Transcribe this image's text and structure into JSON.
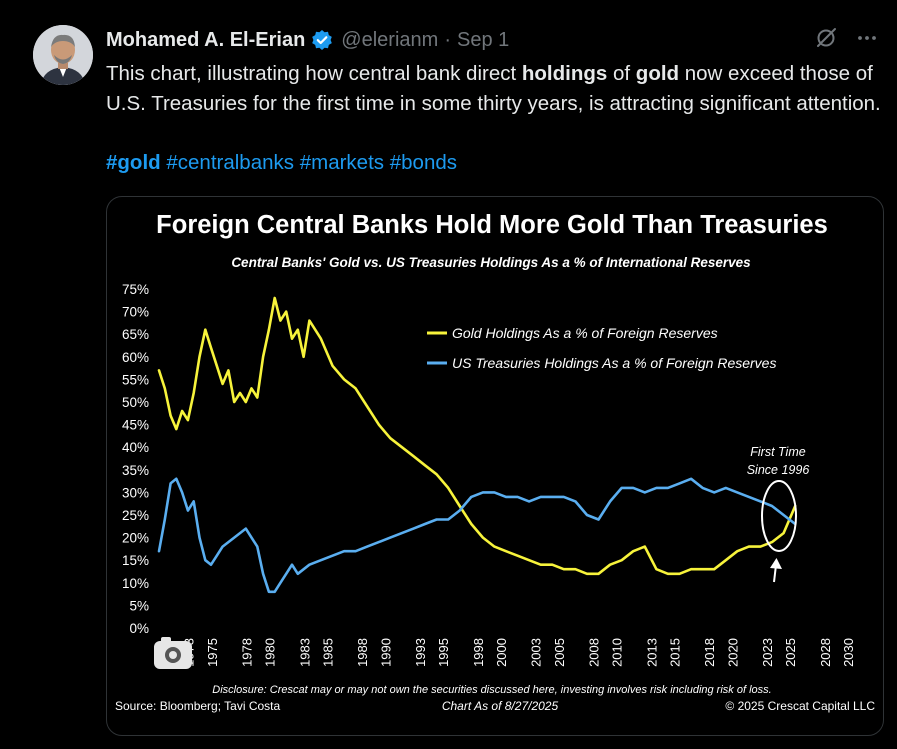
{
  "tweet": {
    "author_name": "Mohamed A. El-Erian",
    "handle": "@elerianm",
    "separator": "·",
    "date": "Sep 1",
    "text_parts": [
      {
        "text": "This chart, illustrating how central bank direct ",
        "bold": false
      },
      {
        "text": "holdings",
        "bold": true
      },
      {
        "text": " of ",
        "bold": false
      },
      {
        "text": "gold",
        "bold": true
      },
      {
        "text": " now exceed those of U.S. Treasuries for the first time in some  thirty years, is attracting significant attention.",
        "bold": false
      }
    ],
    "hashtags": [
      "#gold",
      "#centralbanks",
      "#markets",
      "#bonds"
    ]
  },
  "icons": {
    "verified": "verified-badge-icon",
    "grok": "grok-icon",
    "more": "more-options-icon",
    "photo_overlay": "image-overlay-icon"
  },
  "colors": {
    "gold_series": "#f7f33b",
    "treasury_series": "#5aaef0",
    "link": "#1d9bf0",
    "verified": "#1d9bf0"
  },
  "chart_data": {
    "type": "line",
    "title": "Foreign Central Banks Hold More Gold Than Treasuries",
    "subtitle": "Central Banks' Gold vs. US Treasuries Holdings As a % of International Reserves",
    "ylim": [
      0,
      75
    ],
    "yticks": [
      "75%",
      "70%",
      "65%",
      "60%",
      "55%",
      "50%",
      "45%",
      "40%",
      "35%",
      "30%",
      "25%",
      "20%",
      "15%",
      "10%",
      "5%",
      "0%"
    ],
    "xlim": [
      1970,
      2030
    ],
    "xticks": [
      "1973",
      "1975",
      "1978",
      "1980",
      "1983",
      "1985",
      "1988",
      "1990",
      "1993",
      "1995",
      "1998",
      "2000",
      "2003",
      "2005",
      "2008",
      "2010",
      "2013",
      "2015",
      "2018",
      "2020",
      "2023",
      "2025",
      "2028",
      "2030"
    ],
    "legend_position": "top-right",
    "grid": false,
    "series": [
      {
        "name": "Gold Holdings As a % of Foreign Reserves",
        "color": "#f7f33b",
        "x": [
          1970,
          1970.5,
          1971,
          1971.5,
          1972,
          1972.5,
          1973,
          1973.5,
          1974,
          1974.5,
          1975,
          1975.5,
          1976,
          1976.5,
          1977,
          1977.5,
          1978,
          1978.5,
          1979,
          1979.5,
          1980,
          1980.5,
          1981,
          1981.5,
          1982,
          1982.5,
          1983,
          1983.5,
          1984,
          1985,
          1986,
          1987,
          1988,
          1989,
          1990,
          1991,
          1992,
          1993,
          1994,
          1995,
          1996,
          1997,
          1998,
          1999,
          2000,
          2001,
          2002,
          2003,
          2004,
          2005,
          2006,
          2007,
          2008,
          2009,
          2010,
          2011,
          2012,
          2013,
          2014,
          2015,
          2016,
          2017,
          2018,
          2019,
          2020,
          2021,
          2022,
          2023,
          2024,
          2025
        ],
        "y": [
          57,
          53,
          47,
          44,
          48,
          46,
          52,
          60,
          66,
          62,
          58,
          54,
          57,
          50,
          52,
          50,
          53,
          51,
          60,
          66,
          73,
          68,
          70,
          64,
          66,
          60,
          68,
          66,
          64,
          58,
          55,
          53,
          49,
          45,
          42,
          40,
          38,
          36,
          34,
          31,
          27,
          23,
          20,
          18,
          17,
          16,
          15,
          14,
          14,
          13,
          13,
          12,
          12,
          14,
          15,
          17,
          18,
          13,
          12,
          12,
          13,
          13,
          13,
          15,
          17,
          18,
          18,
          19,
          21,
          27
        ]
      },
      {
        "name": "US Treasuries Holdings As a % of Foreign Reserves",
        "color": "#5aaef0",
        "x": [
          1970,
          1970.5,
          1971,
          1971.5,
          1972,
          1972.5,
          1973,
          1973.5,
          1974,
          1974.5,
          1975,
          1975.5,
          1976,
          1976.5,
          1977,
          1977.5,
          1978,
          1978.5,
          1979,
          1979.5,
          1980,
          1980.5,
          1981,
          1981.5,
          1982,
          1983,
          1984,
          1985,
          1986,
          1987,
          1988,
          1989,
          1990,
          1991,
          1992,
          1993,
          1994,
          1995,
          1996,
          1997,
          1998,
          1999,
          2000,
          2001,
          2002,
          2003,
          2004,
          2005,
          2006,
          2007,
          2008,
          2009,
          2010,
          2011,
          2012,
          2013,
          2014,
          2015,
          2016,
          2017,
          2018,
          2019,
          2020,
          2021,
          2022,
          2023,
          2024,
          2025
        ],
        "y": [
          17,
          24,
          32,
          33,
          30,
          26,
          28,
          20,
          15,
          14,
          16,
          18,
          19,
          20,
          21,
          22,
          20,
          18,
          12,
          8,
          8,
          10,
          12,
          14,
          12,
          14,
          15,
          16,
          17,
          17,
          18,
          19,
          20,
          21,
          22,
          23,
          24,
          24,
          26,
          29,
          30,
          30,
          29,
          29,
          28,
          29,
          29,
          29,
          28,
          25,
          24,
          28,
          31,
          31,
          30,
          31,
          31,
          32,
          33,
          31,
          30,
          31,
          30,
          29,
          28,
          27,
          25,
          23
        ]
      }
    ],
    "annotation": [
      "First Time",
      "Since 1996"
    ],
    "disclosure": "Disclosure: Crescat may or may not own the securities discussed here, investing involves risk including risk of loss.",
    "source": "Source: Bloomberg; Tavi Costa",
    "as_of": "Chart As of 8/27/2025",
    "copyright": "© 2025 Crescat Capital LLC"
  }
}
